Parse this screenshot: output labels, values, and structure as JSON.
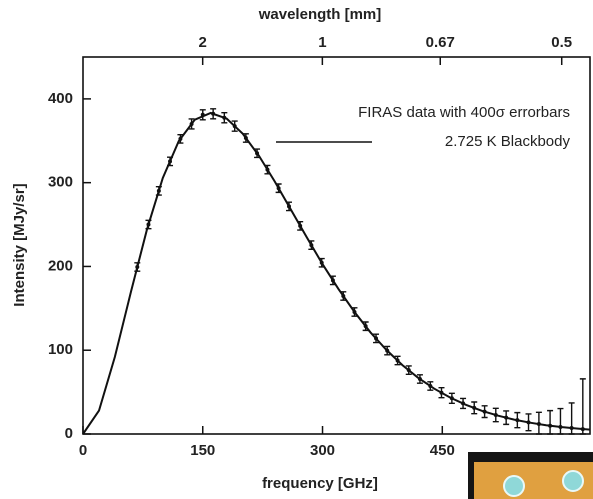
{
  "chart_data": {
    "type": "line",
    "xlabel": "frequency [GHz]",
    "ylabel": "Intensity [MJy/sr]",
    "x2label": "wavelength [mm]",
    "xlim": [
      0,
      635
    ],
    "xticks": [
      0,
      150,
      300,
      450
    ],
    "ylim": [
      0,
      450
    ],
    "yticks": [
      0,
      100,
      200,
      300,
      400
    ],
    "x2ticks": [
      2,
      1,
      0.67,
      0.5
    ],
    "legend": "upper right",
    "series": [
      {
        "name": "FIRAS data with 400σ errorbars",
        "type": "errorbar",
        "color": "#111111",
        "x": [
          68,
          82,
          95,
          109,
          122,
          136,
          150,
          163,
          177,
          190,
          204,
          218,
          231,
          245,
          258,
          272,
          286,
          299,
          313,
          326,
          340,
          354,
          367,
          381,
          394,
          408,
          422,
          435,
          449,
          462,
          476,
          490,
          503,
          517,
          530,
          544,
          558,
          571,
          585,
          598,
          612,
          626
        ],
        "values": [
          199.3,
          250.1,
          290.2,
          325.4,
          352.3,
          370.1,
          381,
          382.2,
          377.5,
          367.5,
          353.3,
          335.1,
          315.6,
          293.4,
          271.7,
          248.4,
          225.4,
          204.4,
          183.4,
          164.7,
          145.6,
          128.7,
          114.1,
          99.5,
          87.7,
          76.2,
          65.7,
          57.3,
          49.3,
          42.6,
          36.5,
          31.2,
          26.7,
          22.7,
          19.5,
          16.5,
          13.9,
          11.9,
          9.9,
          8.4,
          7.1,
          5.8
        ],
        "errors": [
          5,
          5,
          5,
          5,
          5,
          6,
          6,
          6,
          6,
          6,
          5,
          5,
          5,
          5,
          5,
          5,
          5,
          5,
          5,
          5,
          5,
          5,
          5,
          5,
          5,
          5,
          5,
          5,
          6,
          6,
          6,
          7,
          7,
          8,
          8,
          9,
          10,
          14,
          18,
          22,
          30,
          60
        ]
      },
      {
        "name": "2.725 K Blackbody",
        "type": "line",
        "color": "#111111",
        "x": [
          0,
          20,
          40,
          60,
          80,
          100,
          120,
          140,
          160,
          180,
          200,
          220,
          240,
          260,
          280,
          300,
          320,
          340,
          360,
          380,
          400,
          420,
          440,
          460,
          480,
          500,
          520,
          540,
          560,
          580,
          600,
          620,
          635
        ],
        "values": [
          0,
          27.9,
          92.1,
          169.5,
          243.9,
          305.6,
          349.7,
          375.2,
          383.2,
          376.5,
          358.5,
          332.5,
          301.7,
          268.4,
          235.1,
          202.8,
          172.9,
          145.6,
          121.4,
          100.4,
          82.3,
          67.0,
          54.1,
          43.5,
          34.7,
          27.6,
          21.8,
          17.2,
          13.5,
          10.5,
          8.2,
          6.4,
          5.3
        ]
      }
    ]
  }
}
